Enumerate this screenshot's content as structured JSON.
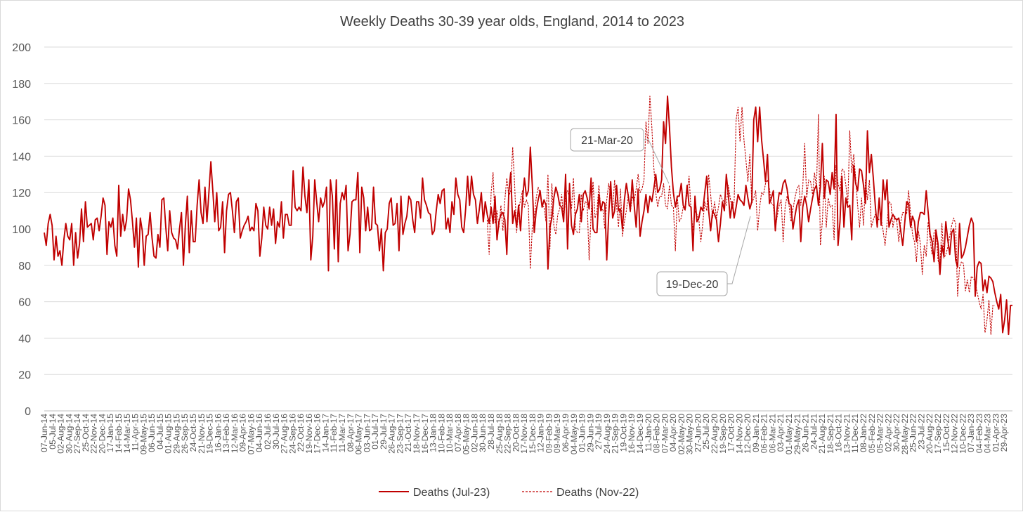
{
  "chart_data": {
    "type": "line",
    "title": "Weekly Deaths 30-39 year olds, England, 2014 to 2023",
    "xlabel": "",
    "ylabel": "",
    "ylim": [
      0,
      200
    ],
    "yticks": [
      0,
      20,
      40,
      60,
      80,
      100,
      120,
      140,
      160,
      180,
      200
    ],
    "grid": "horizontal",
    "legend_position": "bottom",
    "x_start": "07-Jun-14",
    "x_end": "2023-06",
    "x_tick_labels": [
      "07-Jun-14",
      "05-Jul-14",
      "02-Aug-14",
      "30-Aug-14",
      "27-Sep-14",
      "25-Oct-14",
      "22-Nov-14",
      "20-Dec-14",
      "17-Jan-15",
      "14-Feb-15",
      "14-Mar-15",
      "11-Apr-15",
      "09-May-15",
      "06-Jun-15",
      "04-Jul-15",
      "01-Aug-15",
      "29-Aug-15",
      "26-Sep-15",
      "24-Oct-15",
      "21-Nov-15",
      "19-Dec-15",
      "16-Jan-16",
      "13-Feb-16",
      "12-Mar-16",
      "09-Apr-16",
      "07-May-16",
      "04-Jun-16",
      "02-Jul-16",
      "30-Jul-16",
      "27-Aug-16",
      "24-Sep-16",
      "22-Oct-16",
      "19-Nov-16",
      "17-Dec-16",
      "14-Jan-17",
      "11-Feb-17",
      "11-Mar-17",
      "08-Apr-17",
      "06-May-17",
      "03-Jun-17",
      "01-Jul-17",
      "29-Jul-17",
      "26-Aug-17",
      "23-Sep-17",
      "21-Oct-17",
      "18-Nov-17",
      "16-Dec-17",
      "13-Jan-18",
      "10-Feb-18",
      "10-Mar-18",
      "07-Apr-18",
      "05-May-18",
      "02-Jun-18",
      "30-Jun-18",
      "28-Jul-18",
      "25-Aug-18",
      "22-Sep-18",
      "20-Oct-18",
      "17-Nov-18",
      "15-Dec-18",
      "12-Jan-19",
      "09-Feb-19",
      "09-Mar-19",
      "06-Apr-19",
      "04-May-19",
      "01-Jun-19",
      "29-Jun-19",
      "27-Jul-19",
      "24-Aug-19",
      "21-Sep-19",
      "19-Oct-19",
      "16-Nov-19",
      "14-Dec-19",
      "11-Jan-20",
      "08-Feb-20",
      "07-Mar-20",
      "04-Apr-20",
      "02-May-20",
      "30-May-20",
      "27-Jun-20",
      "25-Jul-20",
      "22-Aug-20",
      "19-Sep-20",
      "17-Oct-20",
      "14-Nov-20",
      "12-Dec-20",
      "09-Jan-21",
      "06-Feb-21",
      "06-Mar-21",
      "03-Apr-21",
      "01-May-21",
      "29-May-21",
      "26-Jun-21",
      "24-Jul-21",
      "21-Aug-21",
      "18-Sep-21",
      "16-Oct-21",
      "13-Nov-21",
      "11-Dec-21",
      "08-Jan-22",
      "05-Feb-22",
      "05-Mar-22",
      "02-Apr-22",
      "30-Apr-22",
      "28-May-22",
      "25-Jun-22",
      "23-Jul-22",
      "20-Aug-22",
      "17-Sep-22",
      "15-Oct-22",
      "12-Nov-22",
      "10-Dec-22",
      "07-Jan-23",
      "04-Feb-23",
      "04-Mar-23",
      "01-Apr-23",
      "29-Apr-23"
    ],
    "series": [
      {
        "name": "Deaths (Jul-23)",
        "style": "solid",
        "color": "#C00000",
        "values": [
          98,
          91,
          103,
          108,
          102,
          83,
          96,
          85,
          88,
          80,
          94,
          103,
          96,
          94,
          103,
          80,
          98,
          84,
          92,
          111,
          93,
          115,
          101,
          102,
          103,
          94,
          105,
          106,
          99,
          107,
          117,
          113,
          86,
          104,
          101,
          106,
          91,
          85,
          124,
          96,
          108,
          99,
          105,
          122,
          116,
          104,
          90,
          106,
          79,
          106,
          99,
          80,
          96,
          97,
          109,
          95,
          85,
          84,
          97,
          90,
          116,
          117,
          101,
          88,
          110,
          98,
          95,
          94,
          89,
          100,
          109,
          80,
          102,
          118,
          87,
          110,
          93,
          93,
          113,
          127,
          109,
          103,
          123,
          104,
          120,
          137,
          121,
          104,
          120,
          99,
          101,
          115,
          87,
          110,
          119,
          120,
          110,
          98,
          115,
          117,
          95,
          99,
          102,
          104,
          107,
          99,
          101,
          99,
          114,
          110,
          85,
          95,
          112,
          102,
          100,
          112,
          102,
          111,
          92,
          104,
          101,
          115,
          95,
          108,
          108,
          102,
          102,
          132,
          112,
          110,
          112,
          110,
          134,
          118,
          109,
          127,
          83,
          96,
          127,
          115,
          104,
          117,
          112,
          115,
          123,
          77,
          127,
          118,
          89,
          127,
          82,
          114,
          120,
          116,
          124,
          88,
          97,
          115,
          116,
          116,
          131,
          87,
          123,
          117,
          99,
          112,
          99,
          100,
          123,
          103,
          102,
          88,
          100,
          77,
          98,
          100,
          114,
          117,
          102,
          103,
          114,
          88,
          118,
          97,
          103,
          107,
          118,
          116,
          105,
          98,
          115,
          115,
          106,
          128,
          116,
          113,
          109,
          108,
          97,
          99,
          110,
          119,
          114,
          121,
          122,
          100,
          106,
          98,
          115,
          108,
          128,
          119,
          116,
          101,
          98,
          111,
          129,
          113,
          129,
          119,
          116,
          103,
          111,
          120,
          104,
          115,
          108,
          103,
          112,
          103,
          118,
          94,
          104,
          108,
          109,
          105,
          86,
          120,
          131,
          103,
          110,
          101,
          113,
          99,
          116,
          128,
          118,
          121,
          145,
          124,
          98,
          110,
          116,
          121,
          112,
          116,
          113,
          78,
          101,
          106,
          117,
          123,
          119,
          113,
          112,
          104,
          130,
          89,
          125,
          102,
          97,
          108,
          111,
          119,
          104,
          119,
          121,
          117,
          111,
          128,
          100,
          98,
          98,
          119,
          110,
          115,
          114,
          83,
          108,
          126,
          106,
          110,
          124,
          110,
          111,
          100,
          116,
          125,
          118,
          110,
          127,
          113,
          101,
          122,
          96,
          104,
          110,
          119,
          109,
          118,
          115,
          122,
          130,
          120,
          122,
          127,
          159,
          147,
          173,
          156,
          134,
          120,
          112,
          118,
          118,
          125,
          113,
          111,
          124,
          113,
          112,
          88,
          118,
          104,
          106,
          112,
          110,
          120,
          129,
          110,
          99,
          110,
          108,
          105,
          93,
          103,
          115,
          110,
          130,
          119,
          106,
          115,
          106,
          112,
          119,
          116,
          115,
          113,
          124,
          117,
          111,
          115,
          160,
          167,
          148,
          167,
          149,
          138,
          126,
          141,
          114,
          117,
          121,
          99,
          112,
          120,
          119,
          125,
          127,
          122,
          114,
          113,
          100,
          107,
          113,
          116,
          93,
          112,
          118,
          113,
          104,
          111,
          117,
          122,
          124,
          113,
          123,
          147,
          117,
          127,
          126,
          119,
          131,
          122,
          163,
          91,
          104,
          129,
          101,
          117,
          112,
          113,
          94,
          135,
          125,
          121,
          133,
          132,
          124,
          114,
          154,
          131,
          141,
          128,
          113,
          101,
          117,
          102,
          127,
          116,
          127,
          101,
          105,
          108,
          106,
          105,
          106,
          99,
          91,
          103,
          115,
          114,
          101,
          107,
          104,
          93,
          104,
          109,
          109,
          108,
          121,
          109,
          97,
          93,
          82,
          99,
          92,
          75,
          91,
          85,
          104,
          94,
          86,
          98,
          100,
          83,
          79,
          103,
          84,
          86,
          90,
          96,
          102,
          106,
          103,
          63,
          79,
          82,
          81,
          66,
          72,
          65,
          74,
          73,
          71,
          65,
          60,
          56,
          64,
          43,
          50,
          61,
          42,
          58,
          58
        ]
      },
      {
        "name": "Deaths (Nov-22)",
        "style": "dashed",
        "color": "#C00000",
        "start_index": 226,
        "values": [
          105,
          86,
          120,
          131,
          103,
          110,
          101,
          113,
          99,
          116,
          128,
          118,
          121,
          145,
          124,
          98,
          110,
          116,
          121,
          112,
          116,
          113,
          78,
          101,
          106,
          117,
          123,
          119,
          113,
          112,
          104,
          130,
          89,
          125,
          102,
          97,
          108,
          111,
          119,
          104,
          119,
          121,
          117,
          111,
          128,
          100,
          98,
          98,
          119,
          110,
          115,
          114,
          83,
          108,
          126,
          106,
          110,
          124,
          110,
          111,
          100,
          116,
          125,
          118,
          110,
          127,
          113,
          101,
          122,
          96,
          104,
          110,
          119,
          109,
          118,
          115,
          122,
          130,
          120,
          122,
          127,
          159,
          147,
          173,
          156,
          134,
          120,
          112,
          118,
          118,
          125,
          113,
          111,
          124,
          113,
          112,
          88,
          118,
          104,
          106,
          112,
          110,
          120,
          129,
          110,
          99,
          110,
          108,
          105,
          93,
          103,
          115,
          110,
          130,
          119,
          106,
          115,
          106,
          112,
          119,
          116,
          115,
          113,
          124,
          117,
          111,
          115,
          160,
          167,
          148,
          167,
          149,
          138,
          126,
          141,
          114,
          117,
          121,
          99,
          112,
          120,
          119,
          125,
          127,
          122,
          114,
          113,
          100,
          107,
          113,
          116,
          93,
          112,
          118,
          113,
          104,
          111,
          117,
          122,
          124,
          113,
          123,
          147,
          117,
          127,
          126,
          119,
          131,
          122,
          163,
          91,
          104,
          129,
          101,
          117,
          112,
          113,
          94,
          135,
          125,
          121,
          133,
          132,
          124,
          114,
          154,
          131,
          141,
          128,
          113,
          101,
          117,
          102,
          127,
          116,
          127,
          101,
          105,
          108,
          106,
          105,
          106,
          99,
          91,
          103,
          115,
          114,
          101,
          107,
          104,
          93,
          104,
          109,
          109,
          108,
          121,
          109,
          97,
          93,
          82,
          99,
          92,
          75,
          91,
          85,
          104,
          94,
          86,
          98,
          100,
          83,
          79,
          103,
          84,
          86,
          90,
          96,
          102,
          106,
          103,
          63,
          79,
          82,
          81,
          66,
          72,
          65,
          74,
          73,
          71,
          65,
          60,
          56,
          64,
          43,
          50,
          61,
          42,
          58,
          58
        ]
      }
    ],
    "annotations": [
      {
        "text": "21-Mar-20",
        "target_x": "21-Mar-20",
        "target_y": 125
      },
      {
        "text": "19-Dec-20",
        "target_x": "19-Dec-20",
        "target_y": 107
      }
    ]
  }
}
